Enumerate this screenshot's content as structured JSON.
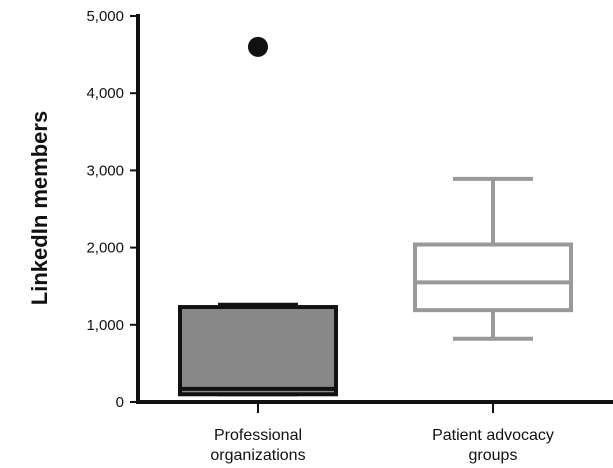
{
  "chart_data": {
    "type": "boxplot",
    "title": "",
    "xlabel": "",
    "ylabel": "LinkedIn members",
    "ylim": [
      0,
      5000
    ],
    "yticks": [
      0,
      1000,
      2000,
      3000,
      4000,
      5000
    ],
    "ytick_labels": [
      "0",
      "1,000",
      "2,000",
      "3,000",
      "4,000",
      "5,000"
    ],
    "grid": false,
    "legend": "none",
    "categories": [
      {
        "lines": [
          "Professional",
          "organizations"
        ]
      },
      {
        "lines": [
          "Patient advocacy",
          "groups"
        ]
      }
    ],
    "series": [
      {
        "category_index": 0,
        "min": 100,
        "q1": 100,
        "median": 170,
        "q3": 1230,
        "max": 1260,
        "outliers": [
          4600
        ],
        "fill": "#888888",
        "stroke": "#111111"
      },
      {
        "category_index": 1,
        "min": 820,
        "q1": 1190,
        "median": 1550,
        "q3": 2040,
        "max": 2890,
        "outliers": [],
        "fill": "#ffffff",
        "stroke": "#999999"
      }
    ]
  }
}
